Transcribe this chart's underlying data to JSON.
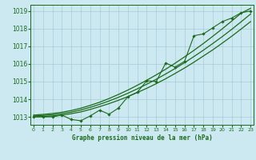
{
  "title": "Graphe pression niveau de la mer (hPa)",
  "background_color": "#cce8f0",
  "grid_color": "#a8ccd8",
  "line_color": "#1a6b1a",
  "xlim": [
    -0.3,
    23.3
  ],
  "ylim": [
    1012.55,
    1019.35
  ],
  "yticks": [
    1013,
    1014,
    1015,
    1016,
    1017,
    1018,
    1019
  ],
  "xticks": [
    0,
    1,
    2,
    3,
    4,
    5,
    6,
    7,
    8,
    9,
    10,
    11,
    12,
    13,
    14,
    15,
    16,
    17,
    18,
    19,
    20,
    21,
    22,
    23
  ],
  "hours": [
    0,
    1,
    2,
    3,
    4,
    5,
    6,
    7,
    8,
    9,
    10,
    11,
    12,
    13,
    14,
    15,
    16,
    17,
    18,
    19,
    20,
    21,
    22,
    23
  ],
  "pressure_straight1": [
    1013.0,
    1013.02,
    1013.05,
    1013.1,
    1013.18,
    1013.28,
    1013.42,
    1013.58,
    1013.75,
    1013.94,
    1014.15,
    1014.38,
    1014.62,
    1014.88,
    1015.16,
    1015.46,
    1015.77,
    1016.1,
    1016.45,
    1016.8,
    1017.18,
    1017.57,
    1017.98,
    1018.4
  ],
  "pressure_straight2": [
    1013.05,
    1013.08,
    1013.12,
    1013.18,
    1013.27,
    1013.39,
    1013.54,
    1013.71,
    1013.9,
    1014.11,
    1014.34,
    1014.59,
    1014.85,
    1015.13,
    1015.43,
    1015.74,
    1016.07,
    1016.42,
    1016.78,
    1017.16,
    1017.55,
    1017.96,
    1018.39,
    1018.83
  ],
  "pressure_straight3": [
    1013.1,
    1013.14,
    1013.19,
    1013.26,
    1013.36,
    1013.49,
    1013.65,
    1013.83,
    1014.04,
    1014.27,
    1014.52,
    1014.79,
    1015.08,
    1015.38,
    1015.7,
    1016.04,
    1016.4,
    1016.77,
    1017.16,
    1017.57,
    1017.99,
    1018.43,
    1018.88,
    1019.15
  ],
  "pressure_jagged": [
    1013.0,
    1013.0,
    1013.0,
    1013.1,
    1012.85,
    1012.78,
    1013.05,
    1013.38,
    1013.15,
    1013.5,
    1014.15,
    1014.4,
    1015.05,
    1015.0,
    1016.05,
    1015.82,
    1016.15,
    1017.6,
    1017.7,
    1018.05,
    1018.4,
    1018.6,
    1018.9,
    1019.0
  ]
}
